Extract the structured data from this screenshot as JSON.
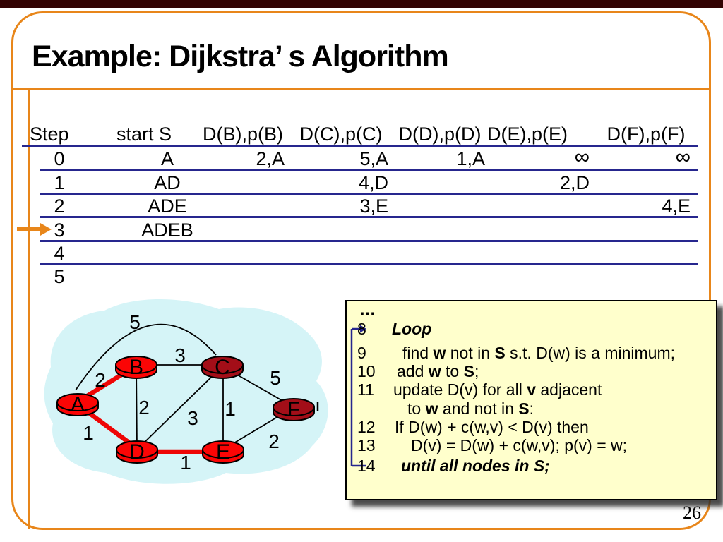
{
  "slide": {
    "title": "Example: Dijkstra’ s Algorithm",
    "page_number": "26"
  },
  "table": {
    "headers": [
      "Step",
      "start S",
      "D(B),p(B)",
      "D(C),p(C)",
      "D(D),p(D)",
      "D(E),p(E)",
      "D(F),p(F)"
    ],
    "rows": [
      {
        "step": "0",
        "start_s": "A",
        "b": "2,A",
        "c": "5,A",
        "d": "1,A",
        "e": "∞",
        "f": "∞"
      },
      {
        "step": "1",
        "start_s": "AD",
        "b": "",
        "c": "4,D",
        "d": "",
        "e": "2,D",
        "f": ""
      },
      {
        "step": "2",
        "start_s": "ADE",
        "b": "",
        "c": "3,E",
        "d": "",
        "e": "",
        "f": "4,E"
      },
      {
        "step": "3",
        "start_s": "ADEB",
        "b": "",
        "c": "",
        "d": "",
        "e": "",
        "f": ""
      },
      {
        "step": "4",
        "start_s": "",
        "b": "",
        "c": "",
        "d": "",
        "e": "",
        "f": ""
      },
      {
        "step": "5",
        "start_s": "",
        "b": "",
        "c": "",
        "d": "",
        "e": "",
        "f": ""
      }
    ],
    "marked_step": "3"
  },
  "graph": {
    "nodes": [
      {
        "id": "A",
        "label": "A",
        "state": "in-set"
      },
      {
        "id": "B",
        "label": "B",
        "state": "in-set"
      },
      {
        "id": "C",
        "label": "C",
        "state": "not-in-set"
      },
      {
        "id": "D",
        "label": "D",
        "state": "in-set"
      },
      {
        "id": "E",
        "label": "E",
        "state": "in-set"
      },
      {
        "id": "F",
        "label": "F",
        "state": "not-in-set"
      }
    ],
    "edges": [
      {
        "from": "A",
        "to": "B",
        "weight": "2",
        "highlighted": true
      },
      {
        "from": "A",
        "to": "D",
        "weight": "1",
        "highlighted": true
      },
      {
        "from": "D",
        "to": "E",
        "weight": "1",
        "highlighted": true
      },
      {
        "from": "A",
        "to": "C",
        "weight": "5",
        "highlighted": false
      },
      {
        "from": "B",
        "to": "C",
        "weight": "3",
        "highlighted": false
      },
      {
        "from": "B",
        "to": "D",
        "weight": "2",
        "highlighted": false
      },
      {
        "from": "C",
        "to": "D",
        "weight": "3",
        "highlighted": false
      },
      {
        "from": "C",
        "to": "E",
        "weight": "1",
        "highlighted": false
      },
      {
        "from": "C",
        "to": "F",
        "weight": "5",
        "highlighted": false
      },
      {
        "from": "E",
        "to": "F",
        "weight": "2",
        "highlighted": false
      }
    ]
  },
  "code": {
    "ellipsis": "…",
    "lines": [
      {
        "num": "8",
        "segments": [
          {
            "t": "Loop",
            "b": 1,
            "i": 1
          }
        ]
      },
      {
        "num": "9",
        "segments": [
          {
            "t": "find "
          },
          {
            "t": "w",
            "b": 1
          },
          {
            "t": " not in "
          },
          {
            "t": "S",
            "b": 1
          },
          {
            "t": " s.t. D(w) is a minimum;"
          }
        ]
      },
      {
        "num": "10",
        "segments": [
          {
            "t": "add "
          },
          {
            "t": "w",
            "b": 1
          },
          {
            "t": " to "
          },
          {
            "t": "S",
            "b": 1
          },
          {
            "t": ";"
          }
        ]
      },
      {
        "num": "11",
        "segments": [
          {
            "t": "update D(v) for all "
          },
          {
            "t": "v",
            "b": 1
          },
          {
            "t": " adjacent"
          }
        ]
      },
      {
        "num": "",
        "segments": [
          {
            "t": "to "
          },
          {
            "t": "w",
            "b": 1
          },
          {
            "t": " and not in "
          },
          {
            "t": "S",
            "b": 1
          },
          {
            "t": ":"
          }
        ]
      },
      {
        "num": "12",
        "segments": [
          {
            "t": "If D(w) + c(w,v) < D(v) then"
          }
        ]
      },
      {
        "num": "13",
        "segments": [
          {
            "t": "D(v) = D(w) + c(w,v); p(v) = w;"
          }
        ]
      },
      {
        "num": "14",
        "segments": [
          {
            "t": "until all nodes in S;",
            "b": 1,
            "i": 1
          }
        ]
      }
    ]
  },
  "colors": {
    "frame_orange": "#E8861A",
    "rule_navy": "#26268E",
    "node_in_set_red": "#FB0505",
    "node_not_in_set_dark_red": "#A30E18",
    "highlight_edge_red": "#EE0505",
    "blob_cyan": "#D5F4F7",
    "code_box_bg": "#FFFFCC",
    "top_strip_maroon": "#330303"
  }
}
